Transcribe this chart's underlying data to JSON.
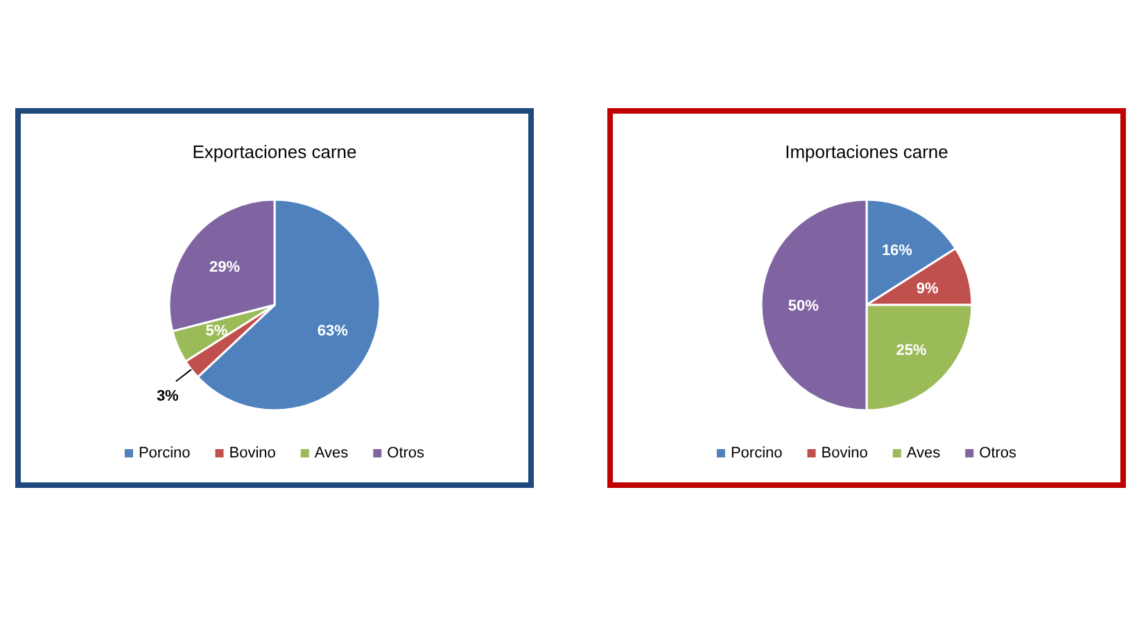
{
  "chart_data": [
    {
      "type": "pie",
      "title": "Exportaciones carne",
      "categories": [
        "Porcino",
        "Bovino",
        "Aves",
        "Otros"
      ],
      "values": [
        63,
        3,
        5,
        29
      ],
      "colors": [
        "#4f81bd",
        "#c0504d",
        "#9bbb59",
        "#8064a2"
      ],
      "value_labels": [
        "63%",
        "3%",
        "5%",
        "29%"
      ],
      "legend": "bottom"
    },
    {
      "type": "pie",
      "title": "Importaciones carne",
      "categories": [
        "Porcino",
        "Bovino",
        "Aves",
        "Otros"
      ],
      "values": [
        16,
        9,
        25,
        50
      ],
      "colors": [
        "#4f81bd",
        "#c0504d",
        "#9bbb59",
        "#8064a2"
      ],
      "value_labels": [
        "16%",
        "9%",
        "25%",
        "50%"
      ],
      "legend": "bottom"
    }
  ]
}
